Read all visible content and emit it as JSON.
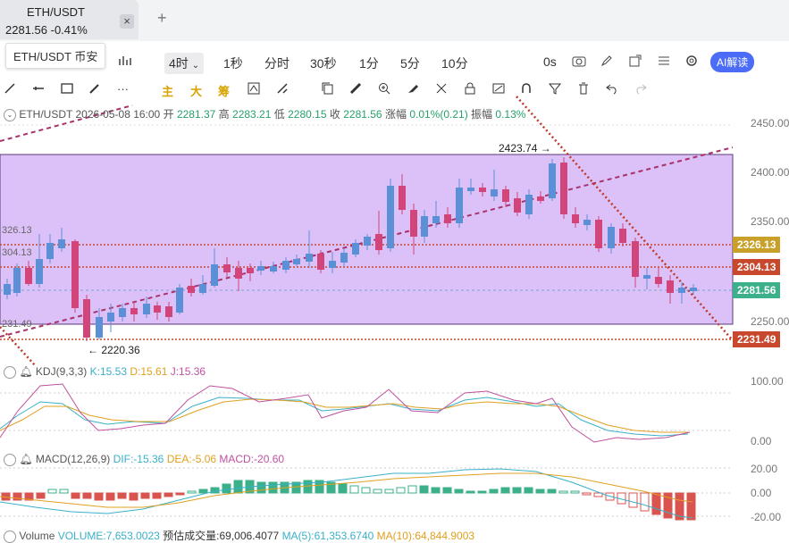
{
  "tab": {
    "title": "ETH/USDT",
    "price": "2281.56",
    "change": "-0.41%",
    "close": "×",
    "add": "+"
  },
  "tooltip": "ETH/USDT 币安",
  "toolbar": {
    "items": [
      "4时",
      "1秒",
      "分时",
      "30秒",
      "1分",
      "5分",
      "10分",
      "0s"
    ],
    "ai": "AI解读"
  },
  "drawbar": {
    "labels": [
      "主",
      "大",
      "筹"
    ]
  },
  "info": {
    "symbol": "ETH/USDT",
    "datetime": "2026-05-08 16:00",
    "open_label": "开",
    "open": "2281.37",
    "high_label": "高",
    "high": "2283.21",
    "low_label": "低",
    "low": "2280.15",
    "close_label": "收",
    "close": "2281.56",
    "amp_label": "涨幅",
    "amp": "0.01%(0.21)",
    "swing_label": "振幅",
    "swing": "0.13%"
  },
  "price_axis": [
    "2450.00",
    "2400.00",
    "2350.00",
    "2250.00"
  ],
  "price_tags": {
    "p2326": "2326.13",
    "p2304": "2304.13",
    "p2281": "2281.56",
    "p2231": "2231.49",
    "left2326": "326.13",
    "left2304": "304.13",
    "left2231": "231.49",
    "high_mark": "2423.74 →",
    "low_mark": "← 2220.36"
  },
  "colors": {
    "up": "#5b8fd6",
    "down": "#d2457a",
    "box": "#dcc0f8"
  },
  "kdj": {
    "label": "KDJ(9,3,3)",
    "k": "K:15.53",
    "d": "D:15.61",
    "j": "J:15.36",
    "axis_top": "100.00",
    "axis_bottom": "0.00"
  },
  "macd": {
    "label": "MACD(12,26,9)",
    "dif": "DIF:-15.36",
    "dea": "DEA:-5.06",
    "macd": "MACD:-20.60",
    "axis": [
      "20.00",
      "0.00",
      "-20.00"
    ]
  },
  "volume": {
    "label": "Volume",
    "volume": "VOLUME:7,653.0023",
    "forecast": "预估成交量:69,006.4077",
    "ma5": "MA(5):61,353.6740",
    "ma10": "MA(10):64,844.9003"
  }
}
